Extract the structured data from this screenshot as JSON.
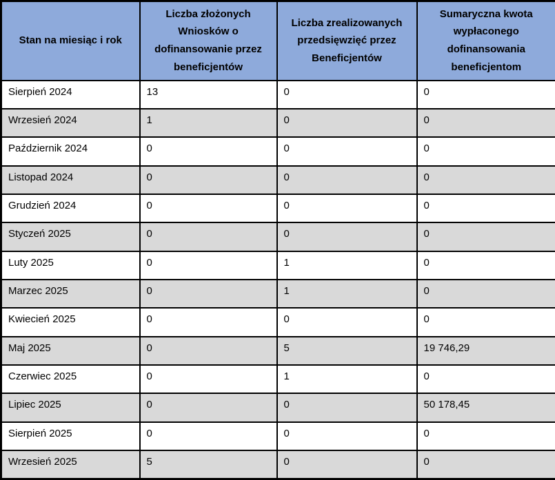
{
  "table": {
    "columns": [
      {
        "key": "month",
        "label": "Stan na miesiąc i rok"
      },
      {
        "key": "applications",
        "label": "Liczba złożonych Wniosków o dofinansowanie przez beneficjentów"
      },
      {
        "key": "completed",
        "label": "Liczba zrealizowanych przedsięwzięć przez Beneficjentów"
      },
      {
        "key": "amount",
        "label": "Sumaryczna kwota wypłaconego dofinansowania beneficjentom"
      }
    ],
    "rows": [
      {
        "month": "Sierpień 2024",
        "applications": "13",
        "completed": "0",
        "amount": "0"
      },
      {
        "month": "Wrzesień 2024",
        "applications": "1",
        "completed": "0",
        "amount": "0"
      },
      {
        "month": "Październik 2024",
        "applications": "0",
        "completed": "0",
        "amount": "0"
      },
      {
        "month": "Listopad 2024",
        "applications": "0",
        "completed": "0",
        "amount": "0"
      },
      {
        "month": "Grudzień 2024",
        "applications": "0",
        "completed": "0",
        "amount": "0"
      },
      {
        "month": "Styczeń 2025",
        "applications": "0",
        "completed": "0",
        "amount": "0"
      },
      {
        "month": "Luty 2025",
        "applications": "0",
        "completed": "1",
        "amount": "0"
      },
      {
        "month": "Marzec 2025",
        "applications": "0",
        "completed": "1",
        "amount": "0"
      },
      {
        "month": "Kwiecień 2025",
        "applications": "0",
        "completed": "0",
        "amount": "0"
      },
      {
        "month": "Maj 2025",
        "applications": "0",
        "completed": "5",
        "amount": "19 746,29"
      },
      {
        "month": "Czerwiec 2025",
        "applications": "0",
        "completed": "1",
        "amount": "0"
      },
      {
        "month": "Lipiec 2025",
        "applications": "0",
        "completed": "0",
        "amount": "50 178,45"
      },
      {
        "month": "Sierpień 2025",
        "applications": "0",
        "completed": "0",
        "amount": "0"
      },
      {
        "month": "Wrzesień 2025",
        "applications": "5",
        "completed": "0",
        "amount": "0"
      }
    ]
  },
  "colors": {
    "header_bg": "#8EAADB",
    "stripe_bg": "#D9D9D9",
    "border": "#000000",
    "text": "#000000"
  }
}
